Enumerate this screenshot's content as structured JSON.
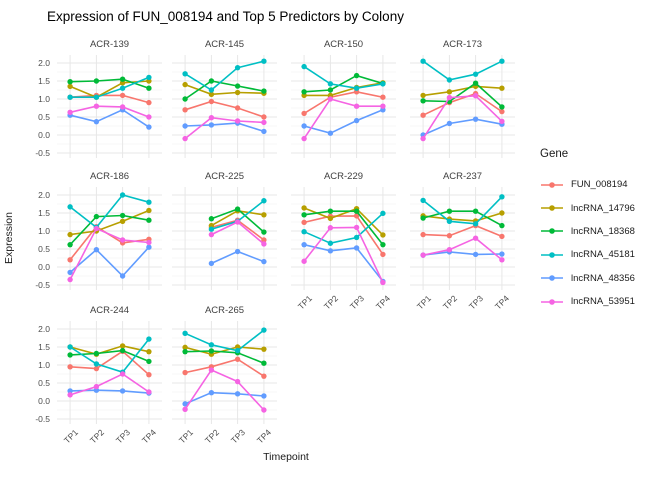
{
  "title": "Expression of FUN_008194 and Top 5 Predictors by Colony",
  "axes": {
    "x_title": "Timepoint",
    "y_title": "Expression",
    "x_ticks": [
      "TP1",
      "TP2",
      "TP3",
      "TP4"
    ],
    "y_ticks": [
      "2.0",
      "1.5",
      "1.0",
      "0.5",
      "0.0",
      "-0.5"
    ]
  },
  "legend": {
    "title": "Gene",
    "items": [
      {
        "label": "FUN_008194",
        "color": "#F8766D"
      },
      {
        "label": "lncRNA_14796",
        "color": "#B79F00"
      },
      {
        "label": "lncRNA_18368",
        "color": "#00BA38"
      },
      {
        "label": "lncRNA_45181",
        "color": "#00BFC4"
      },
      {
        "label": "lncRNA_48356",
        "color": "#619CFF"
      },
      {
        "label": "lncRNA_53951",
        "color": "#F564E3"
      }
    ]
  },
  "chart_data": {
    "type": "line",
    "x": [
      "TP1",
      "TP2",
      "TP3",
      "TP4"
    ],
    "ylim": [
      -0.5,
      2.0
    ],
    "y_major_gridlines": [
      2.0,
      1.5,
      1.0,
      0.5,
      0.0,
      -0.5
    ],
    "y_minor_gridlines": [
      1.75,
      1.25,
      0.75,
      0.25,
      -0.25
    ],
    "legend_position": "right",
    "genes": [
      "FUN_008194",
      "lncRNA_14796",
      "lncRNA_18368",
      "lncRNA_45181",
      "lncRNA_48356",
      "lncRNA_53951"
    ],
    "colors": {
      "FUN_008194": "#F8766D",
      "lncRNA_14796": "#B79F00",
      "lncRNA_18368": "#00BA38",
      "lncRNA_45181": "#00BFC4",
      "lncRNA_48356": "#619CFF",
      "lncRNA_53951": "#F564E3"
    },
    "facets": [
      {
        "name": "ACR-139",
        "series": {
          "FUN_008194": [
            1.05,
            1.1,
            1.1,
            0.9
          ],
          "lncRNA_14796": [
            1.35,
            1.05,
            1.45,
            1.5
          ],
          "lncRNA_18368": [
            1.48,
            1.5,
            1.55,
            1.3
          ],
          "lncRNA_45181": [
            1.05,
            1.05,
            1.3,
            1.6
          ],
          "lncRNA_48356": [
            0.55,
            0.37,
            0.7,
            0.22
          ],
          "lncRNA_53951": [
            0.63,
            0.8,
            0.78,
            0.5
          ]
        }
      },
      {
        "name": "ACR-145",
        "series": {
          "FUN_008194": [
            0.7,
            0.93,
            0.75,
            0.5
          ],
          "lncRNA_14796": [
            1.4,
            1.13,
            1.18,
            1.16
          ],
          "lncRNA_18368": [
            1.0,
            1.5,
            1.36,
            1.22
          ],
          "lncRNA_45181": [
            1.7,
            1.25,
            1.87,
            2.05
          ],
          "lncRNA_48356": [
            0.25,
            0.28,
            0.33,
            0.1
          ],
          "lncRNA_53951": [
            -0.1,
            0.48,
            0.39,
            0.35
          ]
        }
      },
      {
        "name": "ACR-150",
        "series": {
          "FUN_008194": [
            0.6,
            1.05,
            1.2,
            1.05
          ],
          "lncRNA_14796": [
            1.1,
            1.1,
            1.32,
            1.45
          ],
          "lncRNA_18368": [
            1.2,
            1.25,
            1.65,
            1.43
          ],
          "lncRNA_45181": [
            1.9,
            1.42,
            1.3,
            1.42
          ],
          "lncRNA_48356": [
            0.25,
            0.05,
            0.4,
            0.7
          ],
          "lncRNA_53951": [
            -0.1,
            1.0,
            0.8,
            0.8
          ]
        }
      },
      {
        "name": "ACR-173",
        "series": {
          "FUN_008194": [
            0.55,
            0.9,
            1.15,
            0.65
          ],
          "lncRNA_14796": [
            1.1,
            1.2,
            1.35,
            1.3
          ],
          "lncRNA_18368": [
            0.95,
            0.93,
            1.44,
            0.78
          ],
          "lncRNA_45181": [
            2.05,
            1.53,
            1.69,
            2.05
          ],
          "lncRNA_48356": [
            0.0,
            0.32,
            0.44,
            0.3
          ],
          "lncRNA_53951": [
            -0.1,
            1.04,
            1.09,
            0.38
          ]
        }
      },
      {
        "name": "ACR-186",
        "series": {
          "FUN_008194": [
            0.2,
            1.12,
            0.67,
            0.77
          ],
          "lncRNA_14796": [
            0.9,
            1.0,
            1.27,
            1.57
          ],
          "lncRNA_18368": [
            0.62,
            1.4,
            1.43,
            1.3
          ],
          "lncRNA_45181": [
            1.67,
            1.1,
            2.0,
            1.8
          ],
          "lncRNA_48356": [
            -0.15,
            0.48,
            -0.25,
            0.55
          ],
          "lncRNA_53951": [
            -0.35,
            1.07,
            0.75,
            0.68
          ]
        }
      },
      {
        "name": "ACR-225",
        "series": {
          "FUN_008194": [
            null,
            1.1,
            1.3,
            0.75
          ],
          "lncRNA_14796": [
            null,
            1.15,
            1.56,
            1.45
          ],
          "lncRNA_18368": [
            null,
            1.34,
            1.61,
            0.97
          ],
          "lncRNA_45181": [
            null,
            1.05,
            1.27,
            1.84
          ],
          "lncRNA_48356": [
            null,
            0.1,
            0.43,
            0.15
          ],
          "lncRNA_53951": [
            null,
            0.9,
            1.25,
            0.64
          ]
        }
      },
      {
        "name": "ACR-229",
        "series": {
          "FUN_008194": [
            1.24,
            1.41,
            1.42,
            0.35
          ],
          "lncRNA_14796": [
            1.64,
            1.35,
            1.62,
            0.89
          ],
          "lncRNA_18368": [
            1.45,
            1.55,
            1.55,
            0.62
          ],
          "lncRNA_45181": [
            0.98,
            0.66,
            0.82,
            1.49
          ],
          "lncRNA_48356": [
            0.62,
            0.45,
            0.53,
            -0.4
          ],
          "lncRNA_53951": [
            0.16,
            1.09,
            1.1,
            -0.43
          ]
        }
      },
      {
        "name": "ACR-237",
        "series": {
          "FUN_008194": [
            0.9,
            0.87,
            1.15,
            0.85
          ],
          "lncRNA_14796": [
            1.42,
            1.33,
            1.28,
            1.5
          ],
          "lncRNA_18368": [
            1.36,
            1.55,
            1.55,
            1.15
          ],
          "lncRNA_45181": [
            1.85,
            1.27,
            1.2,
            1.95
          ],
          "lncRNA_48356": [
            0.33,
            0.42,
            0.35,
            0.36
          ],
          "lncRNA_53951": [
            0.33,
            0.48,
            0.8,
            0.2
          ]
        }
      },
      {
        "name": "ACR-244",
        "series": {
          "FUN_008194": [
            0.95,
            0.9,
            1.38,
            0.73
          ],
          "lncRNA_14796": [
            1.5,
            1.3,
            1.53,
            1.37
          ],
          "lncRNA_18368": [
            1.28,
            1.32,
            1.4,
            1.1
          ],
          "lncRNA_45181": [
            1.5,
            1.03,
            0.8,
            1.72
          ],
          "lncRNA_48356": [
            0.28,
            0.3,
            0.28,
            0.22
          ],
          "lncRNA_53951": [
            0.17,
            0.4,
            0.75,
            0.25
          ]
        }
      },
      {
        "name": "ACR-265",
        "series": {
          "FUN_008194": [
            0.79,
            0.95,
            1.16,
            0.69
          ],
          "lncRNA_14796": [
            1.49,
            1.3,
            1.5,
            1.44
          ],
          "lncRNA_18368": [
            1.37,
            1.39,
            1.34,
            1.05
          ],
          "lncRNA_45181": [
            1.88,
            1.56,
            1.4,
            1.97
          ],
          "lncRNA_48356": [
            -0.08,
            0.23,
            0.2,
            0.14
          ],
          "lncRNA_53951": [
            -0.23,
            0.86,
            0.54,
            -0.25
          ]
        }
      }
    ]
  }
}
